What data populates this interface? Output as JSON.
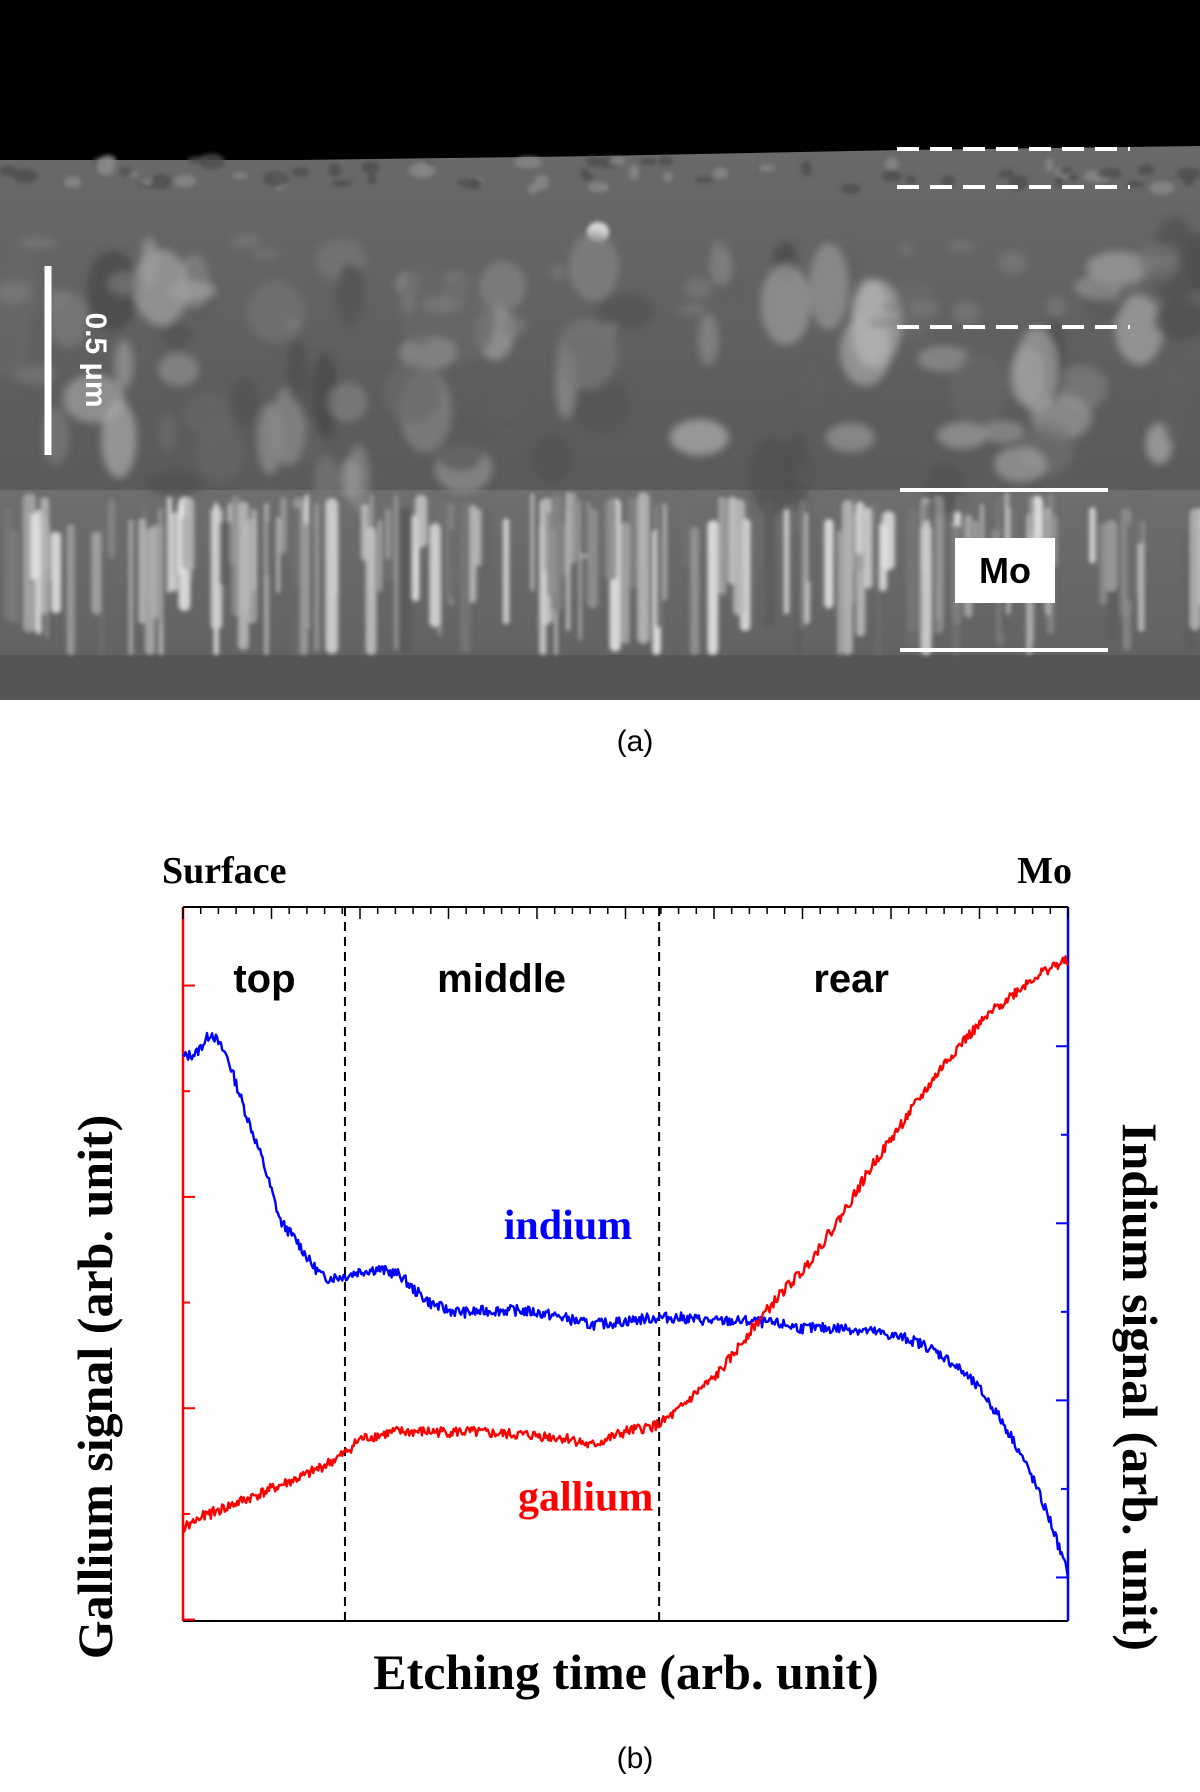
{
  "figure": {
    "caption_a": "(a)",
    "caption_b": "(b)"
  },
  "sem": {
    "scale_bar_label": "0.5 μm",
    "mo_label": "Mo",
    "colors": {
      "vacuum": "#000000",
      "film": "#5e5e5e",
      "label_bg": "#ffffff",
      "marker": "#ffffff"
    }
  },
  "chart_data": {
    "type": "line",
    "xlabel": "Etching time (arb. unit)",
    "ylabel_left": "Gallium signal (arb. unit)",
    "ylabel_right": "Indium signal (arb. unit)",
    "top_left_label": "Surface",
    "top_right_label": "Mo",
    "xlim": [
      0,
      100
    ],
    "ylim": [
      0,
      100
    ],
    "region_boundaries": [
      18.3,
      53.8
    ],
    "regions": [
      {
        "label": "top",
        "x": 9.2
      },
      {
        "label": "middle",
        "x": 36.0
      },
      {
        "label": "rear",
        "x": 75.5
      }
    ],
    "series": [
      {
        "name": "indium",
        "color": "#0000ff",
        "x": [
          0,
          1.5,
          3.2,
          5,
          7,
          9,
          11,
          13,
          14.5,
          16,
          18.3,
          20,
          22,
          24.5,
          26,
          28,
          30,
          32,
          35,
          38,
          40,
          43,
          46,
          48,
          50,
          52,
          53.8,
          56,
          60,
          64,
          68,
          70,
          72,
          75,
          78,
          80,
          82,
          84,
          86,
          88,
          90,
          92,
          94,
          96,
          98,
          100
        ],
        "y": [
          79.0,
          79.5,
          82.5,
          79.0,
          71.5,
          64.5,
          56.0,
          53.0,
          50.0,
          48.0,
          48.3,
          49.0,
          49.3,
          48.5,
          46.5,
          44.5,
          43.5,
          43.2,
          43.5,
          43.5,
          43.2,
          42.5,
          41.5,
          41.7,
          42.0,
          42.3,
          42.5,
          42.5,
          42.0,
          42.0,
          41.5,
          41.0,
          41.0,
          41.0,
          40.5,
          40.0,
          39.5,
          38.5,
          37.0,
          35.0,
          32.5,
          29.0,
          25.0,
          20.0,
          14.0,
          6.5
        ]
      },
      {
        "name": "gallium",
        "color": "#ff0000",
        "x": [
          0,
          2,
          5,
          8,
          11,
          14,
          17,
          18.3,
          20,
          24,
          28,
          32,
          36,
          40,
          44,
          46,
          48,
          50,
          52,
          53.8,
          56,
          58,
          60,
          62,
          64,
          66,
          68,
          70,
          72,
          74,
          76,
          78,
          80,
          82,
          84,
          86,
          88,
          90,
          92,
          94,
          96,
          98,
          100
        ],
        "y": [
          13.0,
          14.5,
          16.0,
          17.5,
          19.0,
          20.5,
          22.5,
          23.5,
          25.5,
          26.5,
          26.5,
          26.5,
          26.2,
          26.0,
          25.5,
          24.5,
          25.5,
          26.5,
          27.0,
          27.5,
          29.5,
          32.0,
          34.0,
          37.0,
          40.5,
          43.5,
          46.5,
          49.0,
          52.5,
          56.0,
          60.0,
          64.0,
          67.5,
          71.0,
          74.5,
          78.0,
          81.0,
          83.5,
          86.0,
          88.0,
          90.0,
          91.5,
          92.5
        ]
      }
    ],
    "labels": [
      {
        "text": "indium",
        "series": "indium"
      },
      {
        "text": "gallium",
        "series": "gallium"
      }
    ]
  }
}
